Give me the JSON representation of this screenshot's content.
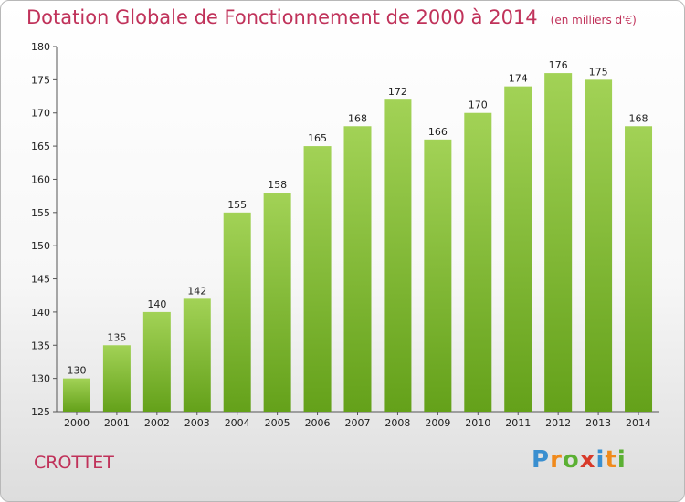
{
  "header": {
    "title": "Dotation Globale de Fonctionnement de 2000 à 2014",
    "unit": "(en milliers d'€)"
  },
  "commune": "CROTTET",
  "logo": {
    "letters": [
      "P",
      "r",
      "o",
      "x",
      "i",
      "t",
      "i"
    ],
    "colors": [
      "#3a8fd0",
      "#f08a1c",
      "#5bb033",
      "#d83a2a",
      "#3a8fd0",
      "#f08a1c",
      "#5bb033"
    ]
  },
  "colors": {
    "bar_top": "#a2d256",
    "bar_bottom": "#64a11a",
    "title": "#c0325a"
  },
  "chart_data": {
    "type": "bar",
    "categories": [
      "2000",
      "2001",
      "2002",
      "2003",
      "2004",
      "2005",
      "2006",
      "2007",
      "2008",
      "2009",
      "2010",
      "2011",
      "2012",
      "2013",
      "2014"
    ],
    "values": [
      130,
      135,
      140,
      142,
      155,
      158,
      165,
      168,
      172,
      166,
      170,
      174,
      176,
      175,
      168
    ],
    "ylim": [
      125,
      180
    ],
    "yticks": [
      125,
      130,
      135,
      140,
      145,
      150,
      155,
      160,
      165,
      170,
      175,
      180
    ],
    "grid": false,
    "legend": "none"
  }
}
